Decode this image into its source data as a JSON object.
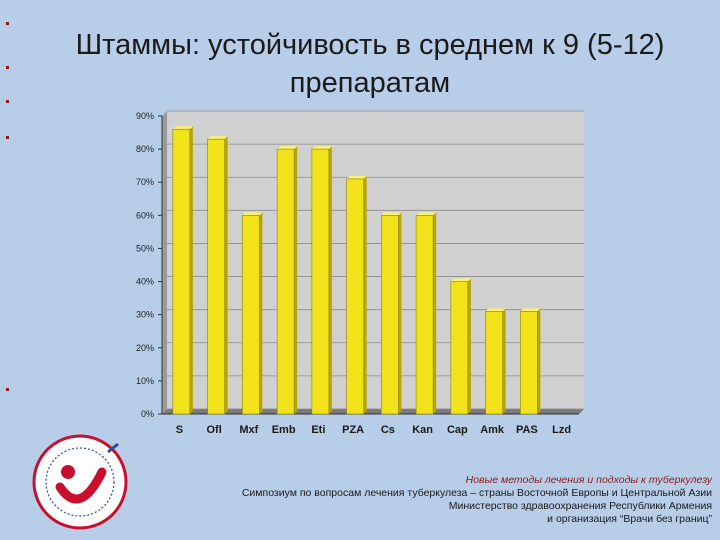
{
  "slide": {
    "title": "Штаммы: устойчивость в среднем к 9 (5-12) препаратам",
    "footer": {
      "line1": "Новые методы лечения и подходы к туберкулезу",
      "line2": "Симпозиум по вопросам лечения туберкулеза – страны Восточной Европы и Центральной Азии",
      "line3": "Министерство здравоохранения Республики Армения",
      "line4": "и организация “Врачи без границ”"
    },
    "colors": {
      "background": "#b7cde8",
      "bar": "#f2e21a",
      "bar_dark": "#b8a600"
    },
    "logo_icon": "conference-logo-icon"
  },
  "chart_data": {
    "type": "bar",
    "title": "",
    "xlabel": "",
    "ylabel": "",
    "categories": [
      "S",
      "Ofl",
      "Mxf",
      "Emb",
      "Eti",
      "PZA",
      "Cs",
      "Kan",
      "Cap",
      "Amk",
      "PAS",
      "Lzd"
    ],
    "values": [
      86,
      83,
      60,
      80,
      80,
      71,
      60,
      60,
      40,
      31,
      31,
      0
    ],
    "ylim": [
      0,
      90
    ],
    "yticks": [
      "0%",
      "10%",
      "20%",
      "30%",
      "40%",
      "50%",
      "60%",
      "70%",
      "80%",
      "90%"
    ],
    "grid": true,
    "legend": "none"
  }
}
